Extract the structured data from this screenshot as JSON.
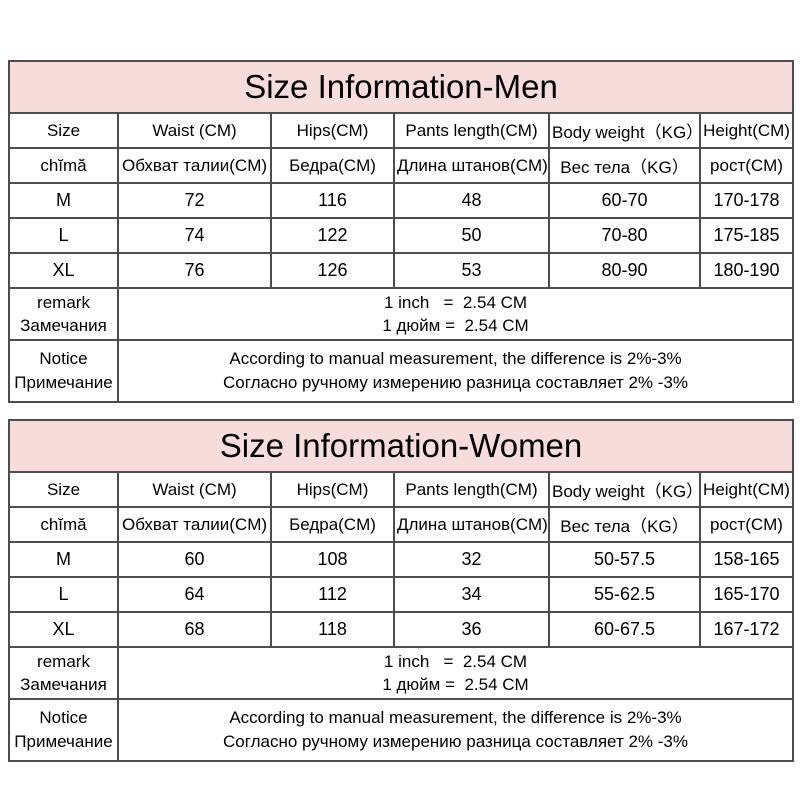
{
  "colors": {
    "page_bg": "#ffffff",
    "title_bg": "#f7dcdc",
    "border": "#4d4d4d",
    "text": "#000000"
  },
  "tables": [
    {
      "title": "Size Information-Men",
      "header_en": [
        "Size",
        "Waist (CM)",
        "Hips(CM)",
        "Pants length(CM)",
        "Body weight（KG）",
        "Height(CM)"
      ],
      "header_intl": [
        "chĭmă",
        "Обхват талии(CM)",
        "Бедра(CM)",
        "Длина штанов(CM)",
        "Вес тела（KG）",
        "рост(CM)"
      ],
      "rows": [
        [
          "M",
          "72",
          "116",
          "48",
          "60-70",
          "170-178"
        ],
        [
          "L",
          "74",
          "122",
          "50",
          "70-80",
          "175-185"
        ],
        [
          "XL",
          "76",
          "126",
          "53",
          "80-90",
          "180-190"
        ]
      ],
      "remark_label": [
        "remark",
        "Замечания"
      ],
      "remark_value": [
        "1 inch   =  2.54 CM",
        "1 дюйм =  2.54 CM"
      ],
      "notice_label": [
        "Notice",
        "Примечание"
      ],
      "notice_value": [
        "According to manual measurement, the difference is 2%-3%",
        "Согласно ручному измерению разница составляет 2% -3%"
      ]
    },
    {
      "title": "Size Information-Women",
      "header_en": [
        "Size",
        "Waist (CM)",
        "Hips(CM)",
        "Pants length(CM)",
        "Body weight（KG）",
        "Height(CM)"
      ],
      "header_intl": [
        "chĭmă",
        "Обхват талии(CM)",
        "Бедра(CM)",
        "Длина штанов(CM)",
        "Вес тела（KG）",
        "рост(CM)"
      ],
      "rows": [
        [
          "M",
          "60",
          "108",
          "32",
          "50-57.5",
          "158-165"
        ],
        [
          "L",
          "64",
          "112",
          "34",
          "55-62.5",
          "165-170"
        ],
        [
          "XL",
          "68",
          "118",
          "36",
          "60-67.5",
          "167-172"
        ]
      ],
      "remark_label": [
        "remark",
        "Замечания"
      ],
      "remark_value": [
        "1 inch   =  2.54 CM",
        "1 дюйм =  2.54 CM"
      ],
      "notice_label": [
        "Notice",
        "Примечание"
      ],
      "notice_value": [
        "According to manual measurement, the difference is 2%-3%",
        "Согласно ручному измерению разница составляет 2% -3%"
      ]
    }
  ]
}
